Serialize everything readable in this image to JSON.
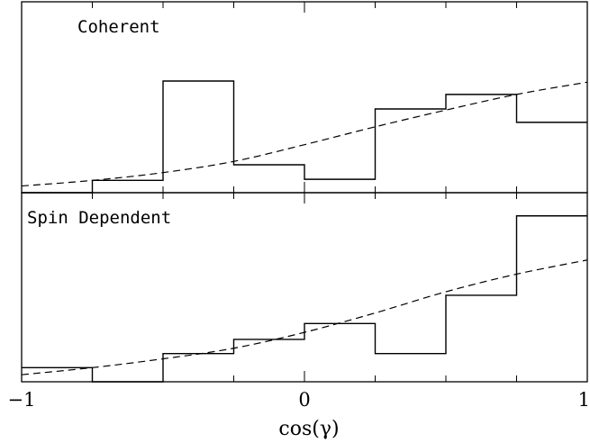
{
  "chart_data": {
    "type": "step-histogram",
    "xlabel": "cos(γ)",
    "xlim": [
      -1,
      1
    ],
    "x_ticks": [
      -1,
      0,
      1
    ],
    "x_minor_step": 0.25,
    "panels": [
      {
        "label": "Coherent",
        "ylim": [
          0,
          1
        ],
        "bin_edges": [
          -1,
          -0.75,
          -0.5,
          -0.25,
          0,
          0.25,
          0.5,
          0.75,
          1
        ],
        "histogram": [
          0.0,
          0.11,
          1.0,
          0.25,
          0.12,
          0.75,
          0.88,
          0.63
        ],
        "curve": {
          "style": "dashed",
          "x": [
            -1,
            -0.75,
            -0.5,
            -0.25,
            0,
            0.25,
            0.5,
            0.75,
            1
          ],
          "y": [
            0.06,
            0.11,
            0.18,
            0.28,
            0.43,
            0.59,
            0.74,
            0.88,
            0.99
          ]
        }
      },
      {
        "label": "Spin Dependent",
        "ylim": [
          0,
          1
        ],
        "bin_edges": [
          -1,
          -0.75,
          -0.5,
          -0.25,
          0,
          0.25,
          0.5,
          0.75,
          1
        ],
        "histogram": [
          0.08,
          0.0,
          0.16,
          0.24,
          0.33,
          0.16,
          0.49,
          0.94
        ],
        "curve": {
          "style": "dashed",
          "x": [
            -1,
            -0.75,
            -0.5,
            -0.25,
            0,
            0.25,
            0.5,
            0.75,
            1
          ],
          "y": [
            0.04,
            0.08,
            0.13,
            0.19,
            0.28,
            0.39,
            0.51,
            0.61,
            0.69
          ]
        }
      }
    ]
  }
}
